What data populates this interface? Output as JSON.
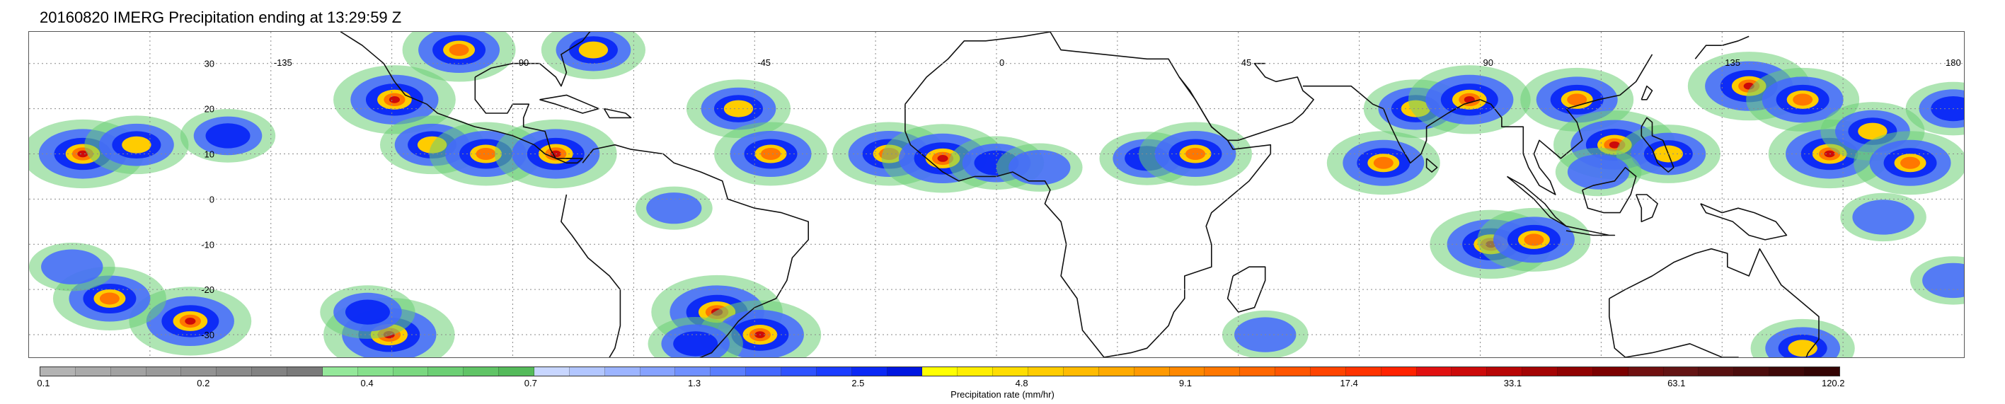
{
  "title": "20160820 IMERG Precipitation ending at 13:29:59 Z",
  "map": {
    "projection": "equirectangular",
    "lon_range": [
      -180,
      180
    ],
    "lat_range": [
      -35,
      37
    ],
    "lon_ticks": [
      {
        "value": -135,
        "label": "-135"
      },
      {
        "value": -90,
        "label": "-90"
      },
      {
        "value": -45,
        "label": "-45"
      },
      {
        "value": 0,
        "label": "0"
      },
      {
        "value": 45,
        "label": "45"
      },
      {
        "value": 90,
        "label": "90"
      },
      {
        "value": 135,
        "label": "135"
      },
      {
        "value": 180,
        "label": "180"
      }
    ],
    "lat_ticks": [
      {
        "value": 30,
        "label": "30"
      },
      {
        "value": 20,
        "label": "20"
      },
      {
        "value": 10,
        "label": "10"
      },
      {
        "value": 0,
        "label": "0"
      },
      {
        "value": -10,
        "label": "-10"
      },
      {
        "value": -20,
        "label": "-20"
      },
      {
        "value": -30,
        "label": "-30"
      }
    ],
    "gridlines": "dotted",
    "precip_cells": [
      {
        "lon": -170,
        "lat": 10,
        "level": 9
      },
      {
        "lon": -160,
        "lat": 12,
        "level": 7
      },
      {
        "lon": -143,
        "lat": 14,
        "level": 6
      },
      {
        "lon": -150,
        "lat": -27,
        "level": 9
      },
      {
        "lon": -165,
        "lat": -22,
        "level": 8
      },
      {
        "lon": -172,
        "lat": -15,
        "level": 5
      },
      {
        "lon": -112,
        "lat": 22,
        "level": 9
      },
      {
        "lon": -105,
        "lat": 12,
        "level": 7
      },
      {
        "lon": -95,
        "lat": 10,
        "level": 8
      },
      {
        "lon": -82,
        "lat": 10,
        "level": 9
      },
      {
        "lon": -100,
        "lat": 33,
        "level": 8
      },
      {
        "lon": -75,
        "lat": 33,
        "level": 7
      },
      {
        "lon": -113,
        "lat": -30,
        "level": 10
      },
      {
        "lon": -117,
        "lat": -25,
        "level": 6
      },
      {
        "lon": -52,
        "lat": -25,
        "level": 10
      },
      {
        "lon": -44,
        "lat": -30,
        "level": 9
      },
      {
        "lon": -56,
        "lat": -32,
        "level": 6
      },
      {
        "lon": -48,
        "lat": 20,
        "level": 7
      },
      {
        "lon": -42,
        "lat": 10,
        "level": 8
      },
      {
        "lon": -60,
        "lat": -2,
        "level": 4
      },
      {
        "lon": -20,
        "lat": 10,
        "level": 8
      },
      {
        "lon": -10,
        "lat": 9,
        "level": 9
      },
      {
        "lon": 0,
        "lat": 8,
        "level": 6
      },
      {
        "lon": 8,
        "lat": 7,
        "level": 5
      },
      {
        "lon": 28,
        "lat": 9,
        "level": 6
      },
      {
        "lon": 37,
        "lat": 10,
        "level": 8
      },
      {
        "lon": 50,
        "lat": -30,
        "level": 5
      },
      {
        "lon": 72,
        "lat": 8,
        "level": 8
      },
      {
        "lon": 78,
        "lat": 20,
        "level": 7
      },
      {
        "lon": 88,
        "lat": 22,
        "level": 9
      },
      {
        "lon": 92,
        "lat": -10,
        "level": 9
      },
      {
        "lon": 100,
        "lat": -9,
        "level": 8
      },
      {
        "lon": 108,
        "lat": 22,
        "level": 8
      },
      {
        "lon": 115,
        "lat": 12,
        "level": 9
      },
      {
        "lon": 125,
        "lat": 10,
        "level": 7
      },
      {
        "lon": 112,
        "lat": 6,
        "level": 5
      },
      {
        "lon": 140,
        "lat": 25,
        "level": 9
      },
      {
        "lon": 150,
        "lat": 22,
        "level": 8
      },
      {
        "lon": 155,
        "lat": 10,
        "level": 9
      },
      {
        "lon": 163,
        "lat": 15,
        "level": 7
      },
      {
        "lon": 170,
        "lat": 8,
        "level": 8
      },
      {
        "lon": 178,
        "lat": 20,
        "level": 6
      },
      {
        "lon": 165,
        "lat": -4,
        "level": 5
      },
      {
        "lon": 150,
        "lat": -33,
        "level": 7
      },
      {
        "lon": 178,
        "lat": -18,
        "level": 5
      }
    ]
  },
  "colorbar": {
    "colors": [
      "#b3b3b3",
      "#aaaaaa",
      "#a2a2a2",
      "#9a9a9a",
      "#929292",
      "#8a8a8a",
      "#828282",
      "#7a7a7a",
      "#94e89a",
      "#86e08c",
      "#7ad880",
      "#6ccf74",
      "#60c466",
      "#54ba5a",
      "#c8d6ff",
      "#b2c6ff",
      "#9cb4ff",
      "#86a2ff",
      "#7090ff",
      "#5a7eff",
      "#4468ff",
      "#2e52ff",
      "#1a3cff",
      "#0a28f5",
      "#0016e0",
      "#ffff00",
      "#ffee00",
      "#ffdd00",
      "#ffcc00",
      "#ffbb00",
      "#ffaa00",
      "#ff9900",
      "#ff8800",
      "#ff7700",
      "#ff6600",
      "#ff5500",
      "#ff4400",
      "#ff3300",
      "#ff2200",
      "#e01010",
      "#cc0a0a",
      "#b80606",
      "#a40404",
      "#900202",
      "#7c0000",
      "#701010",
      "#641414",
      "#581010",
      "#4c0c0c",
      "#400808",
      "#340404"
    ],
    "labels": [
      {
        "value": "0.1",
        "bin": 0
      },
      {
        "value": "0.2",
        "bin": 6
      },
      {
        "value": "0.4",
        "bin": 12
      },
      {
        "value": "0.7",
        "bin": 18
      },
      {
        "value": "1.3",
        "bin": 24
      },
      {
        "value": "2.5",
        "bin": 30
      },
      {
        "value": "4.8",
        "bin": 36
      },
      {
        "value": "9.1",
        "bin": 42
      },
      {
        "value": "17.4",
        "bin": 48
      },
      {
        "value": "33.1",
        "bin": 54
      },
      {
        "value": "63.1",
        "bin": 60
      },
      {
        "value": "120.2",
        "bin": 66
      }
    ],
    "title": "Precipitation rate (mm/hr)"
  }
}
